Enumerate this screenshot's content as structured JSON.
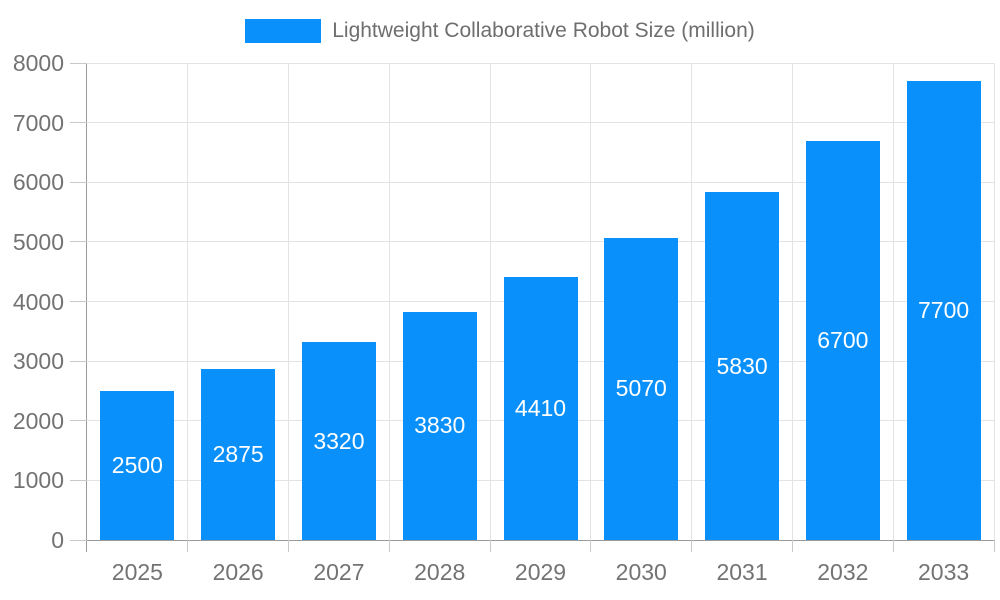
{
  "legend": {
    "label": "Lightweight Collaborative Robot Size (million)"
  },
  "chart_data": {
    "type": "bar",
    "title": "Lightweight Collaborative Robot Size (million)",
    "categories": [
      "2025",
      "2026",
      "2027",
      "2028",
      "2029",
      "2030",
      "2031",
      "2032",
      "2033"
    ],
    "values": [
      2500,
      2875,
      3320,
      3830,
      4410,
      5070,
      5830,
      6700,
      7700
    ],
    "value_labels": [
      "2500",
      "2875",
      "3320",
      "3830",
      "4410",
      "5070",
      "5830",
      "6700",
      "7700"
    ],
    "xlabel": "",
    "ylabel": "",
    "ylim": [
      0,
      8000
    ],
    "ytick_step": 1000,
    "ytick_labels": [
      "0",
      "1000",
      "2000",
      "3000",
      "4000",
      "5000",
      "6000",
      "7000",
      "8000"
    ],
    "grid": true,
    "legend_position": "top",
    "series": [
      {
        "name": "Lightweight Collaborative Robot Size (million)",
        "values": [
          2500,
          2875,
          3320,
          3830,
          4410,
          5070,
          5830,
          6700,
          7700
        ]
      }
    ]
  },
  "colors": {
    "bar": "#0a90fa",
    "value_label": "#ffffff",
    "grid": "#e3e3e3",
    "axis": "#9a9a9a",
    "tick": "#c9c9c9",
    "tick_label": "#737373",
    "legend_text": "#6e6e6e",
    "background": "#ffffff"
  }
}
